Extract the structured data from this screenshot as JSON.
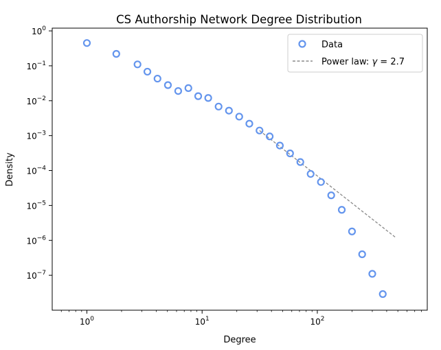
{
  "chart_data": {
    "type": "scatter",
    "title": "CS Authorship Network Degree Distribution",
    "xlabel": "Degree",
    "ylabel": "Density",
    "xscale": "log",
    "yscale": "log",
    "xlim": [
      0.5,
      900
    ],
    "ylim": [
      1e-08,
      1.2
    ],
    "grid": false,
    "legend_position": "top-right",
    "x_ticks": [
      {
        "value": 1,
        "base": "10",
        "exp": "0"
      },
      {
        "value": 10,
        "base": "10",
        "exp": "1"
      },
      {
        "value": 100,
        "base": "10",
        "exp": "2"
      }
    ],
    "y_ticks": [
      {
        "value": 1,
        "base": "10",
        "exp": "0"
      },
      {
        "value": 0.1,
        "base": "10",
        "exp": "−1"
      },
      {
        "value": 0.01,
        "base": "10",
        "exp": "−2"
      },
      {
        "value": 0.001,
        "base": "10",
        "exp": "−3"
      },
      {
        "value": 0.0001,
        "base": "10",
        "exp": "−4"
      },
      {
        "value": 1e-05,
        "base": "10",
        "exp": "−5"
      },
      {
        "value": 1e-06,
        "base": "10",
        "exp": "−6"
      },
      {
        "value": 1e-07,
        "base": "10",
        "exp": "−7"
      }
    ],
    "series": [
      {
        "name": "Data",
        "kind": "scatter",
        "marker": "hollow-circle",
        "color": "#6495ed",
        "x": [
          1.0,
          1.8,
          2.75,
          3.35,
          4.1,
          5.05,
          6.2,
          7.6,
          9.25,
          11.3,
          13.9,
          17.1,
          21.0,
          25.7,
          31.5,
          38.6,
          47.3,
          58.0,
          71.2,
          87.5,
          107.5,
          132.0,
          163.0,
          200.0,
          245.0,
          300.0,
          370.0
        ],
        "y": [
          0.45,
          0.22,
          0.11,
          0.068,
          0.043,
          0.028,
          0.019,
          0.023,
          0.0135,
          0.012,
          0.0068,
          0.0052,
          0.0035,
          0.0022,
          0.0014,
          0.00095,
          0.00052,
          0.00031,
          0.000175,
          8e-05,
          4.7e-05,
          1.95e-05,
          7.5e-06,
          1.8e-06,
          4e-07,
          1.1e-07,
          2.9e-08
        ]
      },
      {
        "name": "Power law: γ = 2.7",
        "legend_prefix": "Power law: ",
        "legend_symbol": "γ",
        "legend_suffix": " = 2.7",
        "kind": "line",
        "style": "dashed",
        "color": "#888888",
        "x": [
          31.5,
          480
        ],
        "y": [
          0.0014,
          1.2e-06
        ]
      }
    ]
  }
}
